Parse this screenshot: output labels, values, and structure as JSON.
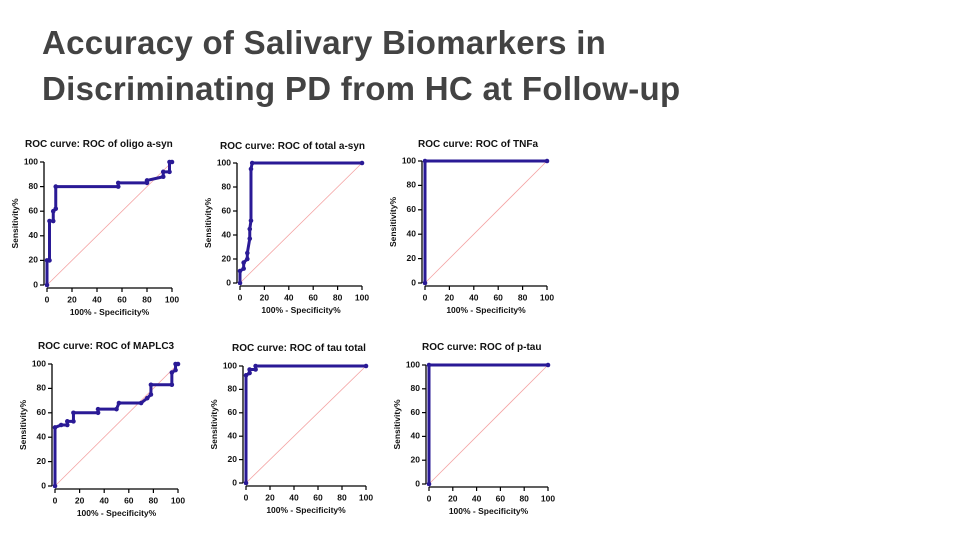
{
  "title": "Accuracy of Salivary Biomarkers in Discriminating PD from HC at Follow-up",
  "chart_data": [
    {
      "type": "line",
      "title": "ROC curve: ROC of oligo a-syn",
      "x_label": "100% - Specificity%",
      "y_label": "Sensitivity%",
      "x": [
        0,
        0,
        2,
        2,
        5,
        5,
        7,
        7,
        57,
        57,
        80,
        80,
        93,
        93,
        98,
        98,
        100
      ],
      "series": [
        {
          "color": "#2a1a96",
          "values": [
            0,
            20,
            20,
            52,
            52,
            60,
            62,
            80,
            80,
            83,
            83,
            85,
            88,
            92,
            92,
            100,
            100
          ]
        }
      ],
      "xlim": [
        0,
        100
      ],
      "ylim": [
        0,
        100
      ],
      "xticks": [
        0,
        20,
        40,
        60,
        80,
        100
      ],
      "yticks": [
        0,
        20,
        40,
        60,
        80,
        100
      ],
      "diagonal": true,
      "diagonal_color": "#f4a3a3"
    },
    {
      "type": "line",
      "title": "ROC curve: ROC of total a-syn",
      "x_label": "100% - Specificity%",
      "y_label": "Sensitivity%",
      "x": [
        0,
        0,
        3,
        3,
        6,
        6,
        8,
        8,
        9,
        9,
        10,
        100
      ],
      "series": [
        {
          "color": "#2a1a96",
          "values": [
            0,
            10,
            12,
            17,
            20,
            25,
            37,
            45,
            52,
            95,
            100,
            100
          ]
        }
      ],
      "xlim": [
        0,
        100
      ],
      "ylim": [
        0,
        100
      ],
      "xticks": [
        0,
        20,
        40,
        60,
        80,
        100
      ],
      "yticks": [
        0,
        20,
        40,
        60,
        80,
        100
      ],
      "diagonal": true,
      "diagonal_color": "#f4a3a3"
    },
    {
      "type": "line",
      "title": "ROC curve: ROC of TNFa",
      "x_label": "100% - Specificity%",
      "y_label": "Sensitivity%",
      "x": [
        0,
        0,
        100
      ],
      "series": [
        {
          "color": "#2a1a96",
          "values": [
            0,
            100,
            100
          ]
        }
      ],
      "xlim": [
        0,
        100
      ],
      "ylim": [
        0,
        100
      ],
      "xticks": [
        0,
        20,
        40,
        60,
        80,
        100
      ],
      "yticks": [
        0,
        20,
        40,
        60,
        80,
        100
      ],
      "diagonal": true,
      "diagonal_color": "#f4a3a3"
    },
    {
      "type": "line",
      "title": "ROC curve: ROC of MAPLC3",
      "x_label": "100% - Specificity%",
      "y_label": "Sensitivity%",
      "x": [
        0,
        0,
        5,
        10,
        10,
        15,
        15,
        35,
        35,
        50,
        52,
        70,
        75,
        78,
        78,
        95,
        95,
        98,
        98,
        100
      ],
      "series": [
        {
          "color": "#2a1a96",
          "values": [
            0,
            48,
            50,
            50,
            53,
            53,
            60,
            60,
            63,
            63,
            68,
            68,
            72,
            75,
            83,
            83,
            93,
            95,
            100,
            100
          ]
        }
      ],
      "xlim": [
        0,
        100
      ],
      "ylim": [
        0,
        100
      ],
      "xticks": [
        0,
        20,
        40,
        60,
        80,
        100
      ],
      "yticks": [
        0,
        20,
        40,
        60,
        80,
        100
      ],
      "diagonal": true,
      "diagonal_color": "#f4a3a3"
    },
    {
      "type": "line",
      "title": "ROC curve: ROC of tau total",
      "x_label": "100% - Specificity%",
      "y_label": "Sensitivity%",
      "x": [
        0,
        0,
        3,
        3,
        8,
        8,
        100
      ],
      "series": [
        {
          "color": "#2a1a96",
          "values": [
            0,
            92,
            94,
            97,
            97,
            100,
            100
          ]
        }
      ],
      "xlim": [
        0,
        100
      ],
      "ylim": [
        0,
        100
      ],
      "xticks": [
        0,
        20,
        40,
        60,
        80,
        100
      ],
      "yticks": [
        0,
        20,
        40,
        60,
        80,
        100
      ],
      "diagonal": true,
      "diagonal_color": "#f4a3a3"
    },
    {
      "type": "line",
      "title": "ROC curve: ROC of p-tau",
      "x_label": "100% - Specificity%",
      "y_label": "Sensitivity%",
      "x": [
        0,
        0,
        100
      ],
      "series": [
        {
          "color": "#2a1a96",
          "values": [
            0,
            100,
            100
          ]
        }
      ],
      "xlim": [
        0,
        100
      ],
      "ylim": [
        0,
        100
      ],
      "xticks": [
        0,
        20,
        40,
        60,
        80,
        100
      ],
      "yticks": [
        0,
        20,
        40,
        60,
        80,
        100
      ],
      "diagonal": true,
      "diagonal_color": "#f4a3a3"
    }
  ]
}
